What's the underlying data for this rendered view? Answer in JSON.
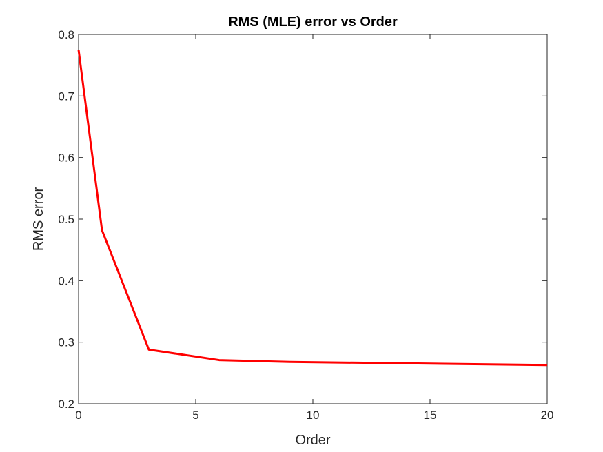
{
  "chart_data": {
    "type": "line",
    "title": "RMS (MLE) error vs Order",
    "xlabel": "Order",
    "ylabel": "RMS error",
    "xlim": [
      0,
      20
    ],
    "ylim": [
      0.2,
      0.8
    ],
    "xticks": [
      0,
      5,
      10,
      15,
      20
    ],
    "xtick_labels": [
      "0",
      "5",
      "10",
      "15",
      "20"
    ],
    "yticks": [
      0.2,
      0.3,
      0.4,
      0.5,
      0.6,
      0.7,
      0.8
    ],
    "ytick_labels": [
      "0.2",
      "0.3",
      "0.4",
      "0.5",
      "0.6",
      "0.7",
      "0.8"
    ],
    "grid": false,
    "legend": "none",
    "series": [
      {
        "color": "#ff0000",
        "x": [
          0,
          1,
          3,
          6,
          9,
          20
        ],
        "y": [
          0.775,
          0.482,
          0.288,
          0.271,
          0.268,
          0.263
        ]
      }
    ]
  }
}
